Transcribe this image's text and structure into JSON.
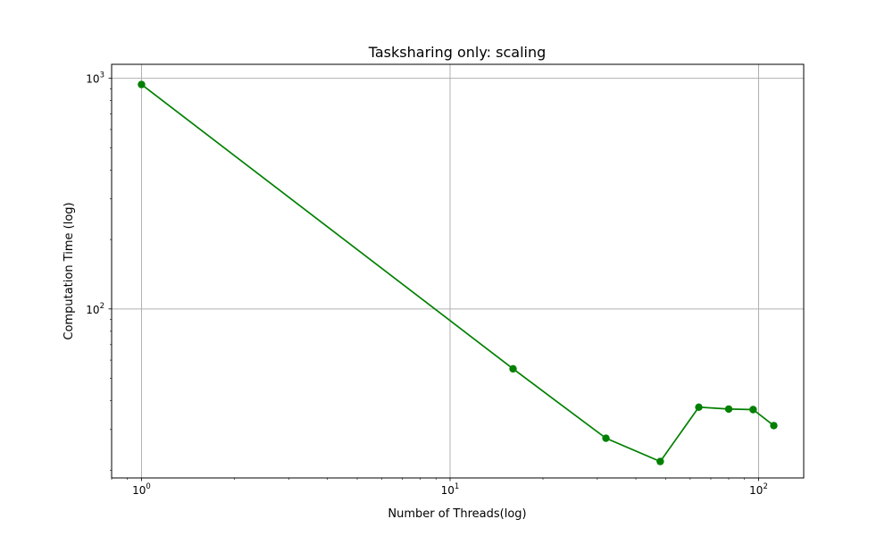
{
  "chart_data": {
    "type": "line",
    "title": "Tasksharing only: scaling",
    "xlabel": "Number of Threads(log)",
    "ylabel": "Computation Time (log)",
    "xscale": "log",
    "yscale": "log",
    "xlim": [
      0.8,
      140
    ],
    "ylim": [
      18.5,
      1150
    ],
    "grid": true,
    "x_major_ticks": [
      {
        "value": 1,
        "base": "10",
        "exp": "0"
      },
      {
        "value": 10,
        "base": "10",
        "exp": "1"
      },
      {
        "value": 100,
        "base": "10",
        "exp": "2"
      }
    ],
    "y_major_ticks": [
      {
        "value": 100,
        "base": "10",
        "exp": "2"
      },
      {
        "value": 1000,
        "base": "10",
        "exp": "3"
      }
    ],
    "series": [
      {
        "color": "#008000",
        "marker": "circle",
        "x": [
          1,
          16,
          32,
          48,
          64,
          80,
          96,
          112
        ],
        "y": [
          940,
          55,
          27.5,
          21.8,
          37.5,
          36.8,
          36.6,
          31.2
        ]
      }
    ]
  }
}
